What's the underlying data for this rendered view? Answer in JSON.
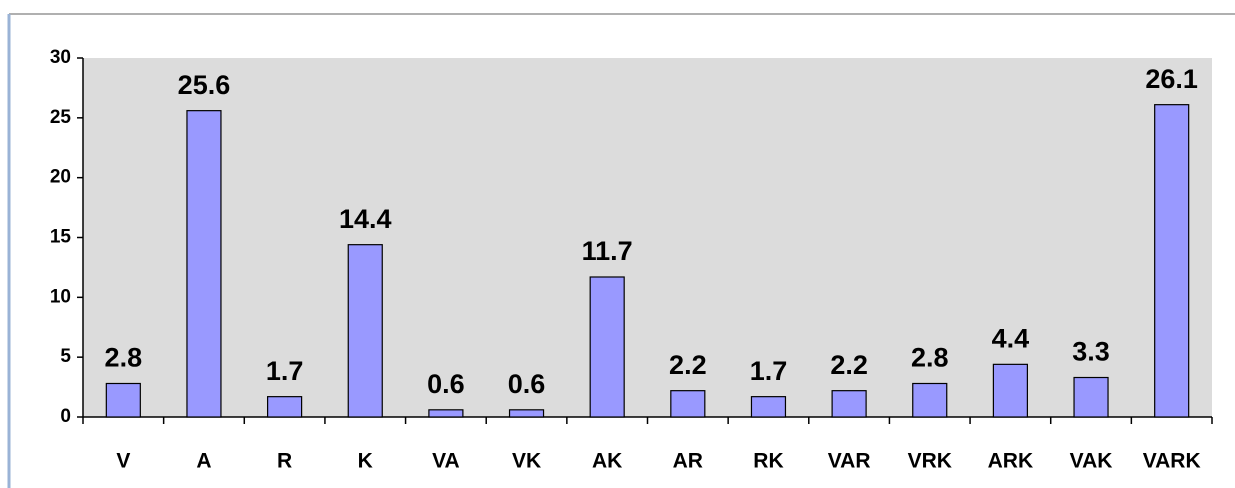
{
  "chart_data": {
    "type": "bar",
    "categories": [
      "V",
      "A",
      "R",
      "K",
      "VA",
      "VK",
      "AK",
      "AR",
      "RK",
      "VAR",
      "VRK",
      "ARK",
      "VAK",
      "VARK"
    ],
    "values": [
      2.8,
      25.6,
      1.7,
      14.4,
      0.6,
      0.6,
      11.7,
      2.2,
      1.7,
      2.2,
      2.8,
      4.4,
      3.3,
      26.1
    ],
    "color": "#9999ff",
    "ylim": [
      0,
      30
    ],
    "yticks": [
      0,
      5,
      10,
      15,
      20,
      25,
      30
    ],
    "grid": false
  }
}
